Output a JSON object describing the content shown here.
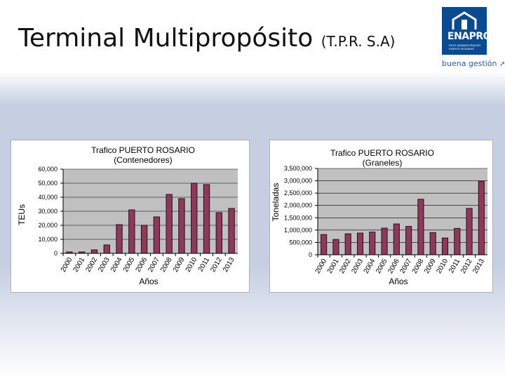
{
  "header": {
    "title": "Terminal Multipropósito",
    "title_suffix": "(T.P.R. S.A)"
  },
  "logo": {
    "name": "ENAPRO",
    "subtitle": "ENTE ADMINISTRADOR PUERTO ROSARIO",
    "tagline": "buena gestión"
  },
  "colors": {
    "bar_fill": "#8c3a58",
    "bar_stroke": "#2a0f1a",
    "plot_bg": "#c0c0c0",
    "logo_blue": "#0a4a90"
  },
  "chart_data": [
    {
      "type": "bar",
      "title": "Trafico PUERTO ROSARIO",
      "subtitle": "(Contenedores)",
      "xlabel": "Años",
      "ylabel": "TEUs",
      "categories": [
        "2000",
        "2001",
        "2002",
        "2003",
        "2004",
        "2005",
        "2006",
        "2007",
        "2008",
        "2009",
        "2010",
        "2011",
        "2012",
        "2013"
      ],
      "values": [
        1000,
        1000,
        2500,
        6000,
        20500,
        31000,
        20000,
        26000,
        42000,
        39000,
        50000,
        49000,
        29000,
        32000
      ],
      "ylim": [
        0,
        60000
      ],
      "yticks": [
        0,
        10000,
        20000,
        30000,
        40000,
        50000,
        60000
      ],
      "ytick_labels": [
        "0",
        "10,000",
        "20,000",
        "30,000",
        "40,000",
        "50,000",
        "60,000"
      ],
      "grid": true,
      "legend": "none"
    },
    {
      "type": "bar",
      "title": "Trafico PUERTO ROSARIO",
      "subtitle": "(Graneles)",
      "xlabel": "Años",
      "ylabel": "Toneladas",
      "categories": [
        "2000",
        "2001",
        "2002",
        "2003",
        "2004",
        "2005",
        "2006",
        "2007",
        "2008",
        "2009",
        "2010",
        "2011",
        "2012",
        "2013"
      ],
      "values": [
        820000,
        620000,
        850000,
        880000,
        920000,
        1080000,
        1250000,
        1150000,
        2250000,
        900000,
        680000,
        1070000,
        1880000,
        2970000
      ],
      "ylim": [
        0,
        3500000
      ],
      "yticks": [
        0,
        500000,
        1000000,
        1500000,
        2000000,
        2500000,
        3000000,
        3500000
      ],
      "ytick_labels": [
        "0",
        "500,000",
        "1,000,000",
        "1,500,000",
        "2,000,000",
        "2,500,000",
        "3,000,000",
        "3,500,000"
      ],
      "grid": true,
      "legend": "none"
    }
  ]
}
